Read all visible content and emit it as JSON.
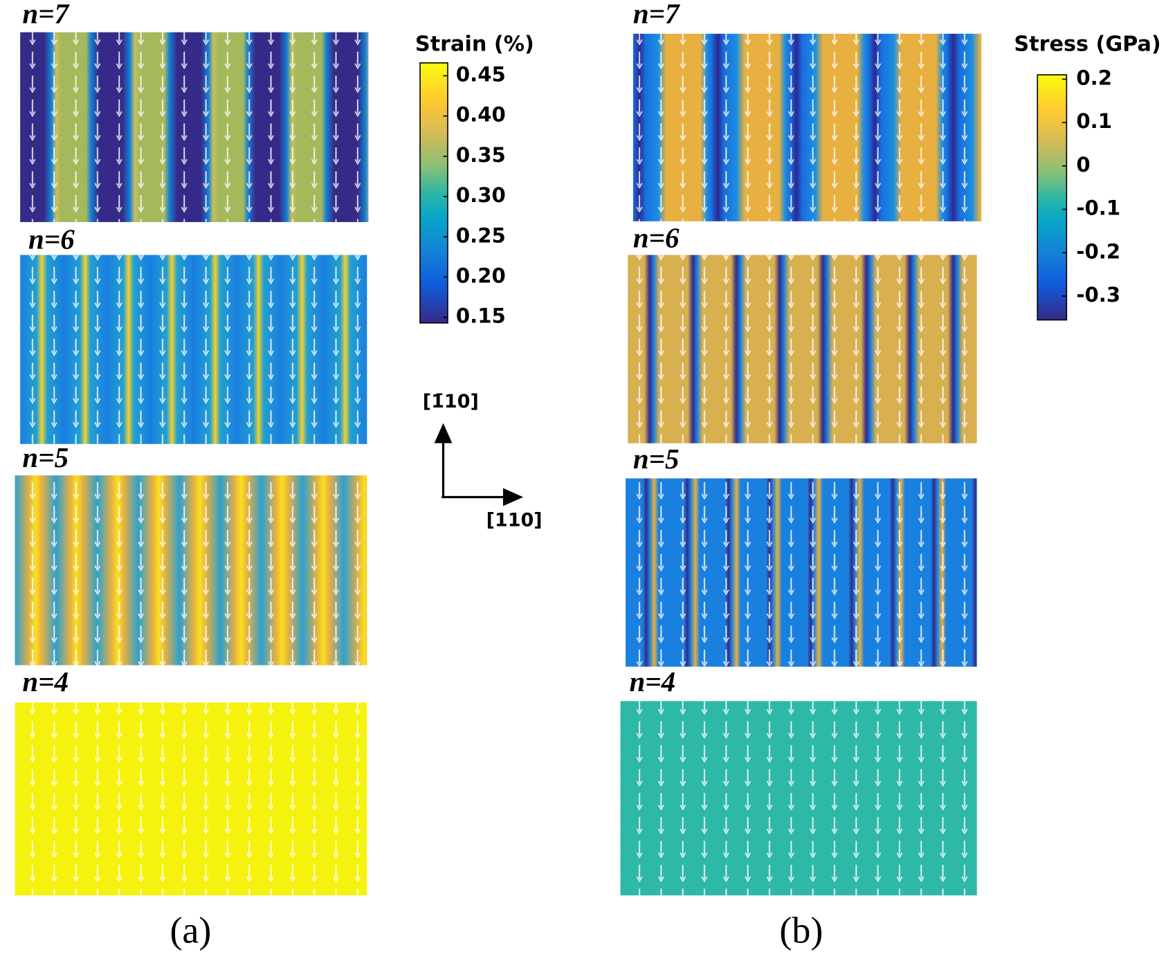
{
  "panels": [
    {
      "label": "(a)",
      "colorbar": {
        "title": "Strain (%)",
        "lim": [
          0.143,
          0.466
        ],
        "ticks": [
          0.45,
          {
            "value": 0.4,
            "label": "0.40"
          },
          0.35,
          {
            "value": 0.3,
            "label": "0.30"
          },
          0.25,
          {
            "value": 0.2,
            "label": "0.20"
          },
          0.15
        ]
      },
      "maps": [
        {
          "label": "n=7"
        },
        {
          "label": "n=6"
        },
        {
          "label": "n=5"
        },
        {
          "label": "n=4"
        }
      ]
    },
    {
      "label": "(b)",
      "colorbar": {
        "title": "Stress (GPa)",
        "lim": [
          -0.355,
          0.21
        ],
        "ticks": [
          0.2,
          0.1,
          0,
          -0.1,
          -0.2,
          -0.3
        ]
      },
      "maps": [
        {
          "label": "n=7"
        },
        {
          "label": "n=6"
        },
        {
          "label": "n=5"
        },
        {
          "label": "n=4"
        }
      ]
    }
  ],
  "directions": {
    "vertical": "[1̄10]",
    "horizontal": "[110]"
  }
}
